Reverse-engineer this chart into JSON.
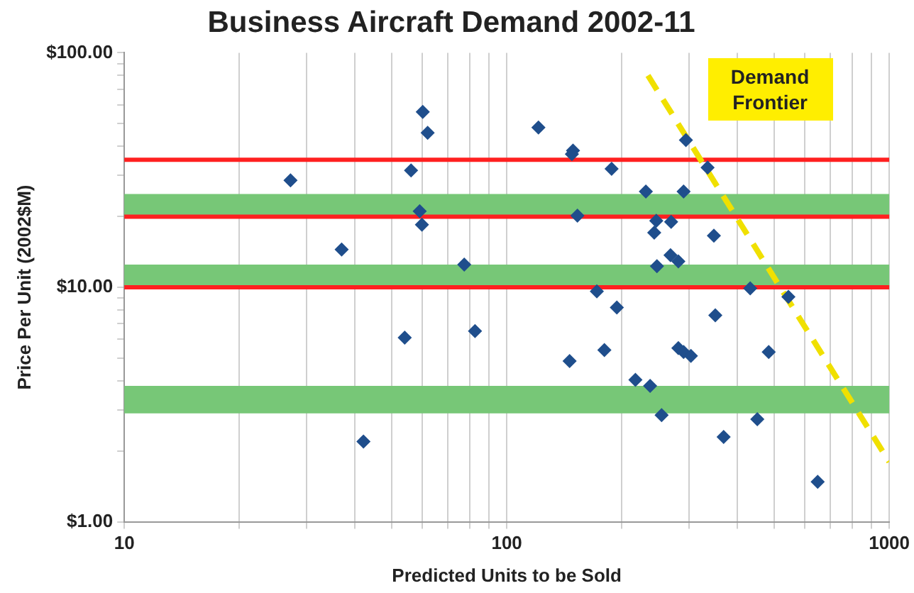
{
  "chart_data": {
    "type": "scatter",
    "title": "Business Aircraft Demand 2002-11",
    "xlabel": "Predicted Units to be Sold",
    "ylabel": "Price Per Unit (2002$M)",
    "log": "xy",
    "grid": "x",
    "legend": false,
    "xlim": [
      10,
      1000
    ],
    "xticks": [
      10,
      {
        "value": 20,
        "label": null
      },
      {
        "value": 30,
        "label": null
      },
      {
        "value": 40,
        "label": null
      },
      {
        "value": 50,
        "label": null
      },
      {
        "value": 60,
        "label": null
      },
      {
        "value": 70,
        "label": null
      },
      {
        "value": 80,
        "label": null
      },
      {
        "value": 90,
        "label": null
      },
      100,
      {
        "value": 200,
        "label": null
      },
      {
        "value": 300,
        "label": null
      },
      {
        "value": 400,
        "label": null
      },
      {
        "value": 500,
        "label": null
      },
      {
        "value": 600,
        "label": null
      },
      {
        "value": 700,
        "label": null
      },
      {
        "value": 800,
        "label": null
      },
      {
        "value": 900,
        "label": null
      },
      1000
    ],
    "ylim": [
      1,
      100
    ],
    "yticks": [
      {
        "value": 1,
        "label": "$1.00"
      },
      {
        "value": 2,
        "label": null
      },
      {
        "value": 3,
        "label": null
      },
      {
        "value": 4,
        "label": null
      },
      {
        "value": 5,
        "label": null
      },
      {
        "value": 6,
        "label": null
      },
      {
        "value": 7,
        "label": null
      },
      {
        "value": 8,
        "label": null
      },
      {
        "value": 9,
        "label": null
      },
      {
        "value": 10,
        "label": "$10.00"
      },
      {
        "value": 20,
        "label": null
      },
      {
        "value": 30,
        "label": null
      },
      {
        "value": 40,
        "label": null
      },
      {
        "value": 50,
        "label": null
      },
      {
        "value": 60,
        "label": null
      },
      {
        "value": 70,
        "label": null
      },
      {
        "value": 80,
        "label": null
      },
      {
        "value": 90,
        "label": null
      },
      {
        "value": 100,
        "label": "$100.00"
      }
    ],
    "bands": [
      {
        "axis": "y",
        "from": 20,
        "to": 25,
        "color": "#77c777"
      },
      {
        "axis": "y",
        "from": 10,
        "to": 12.5,
        "color": "#77c777"
      },
      {
        "axis": "y",
        "from": 2.9,
        "to": 3.8,
        "color": "#77c777"
      }
    ],
    "ref_lines": [
      {
        "axis": "y",
        "value": 35,
        "color": "#ff2020"
      },
      {
        "axis": "y",
        "value": 20,
        "color": "#ff2020"
      },
      {
        "axis": "y",
        "value": 10,
        "color": "#ff2020"
      }
    ],
    "annotations": [
      "Demand Frontier"
    ],
    "series": [
      {
        "marker": "diamond",
        "color": "#1f4e8c",
        "x": [
          27.2,
          60.3,
          62.1,
          56.2,
          59.2,
          60,
          37,
          77.4,
          121,
          149,
          148,
          188,
          294,
          335,
          231,
          290,
          153,
          246,
          269,
          243,
          348,
          268,
          281,
          247,
          172,
          433,
          545,
          194,
          351,
          54.1,
          82.6,
          42.2,
          146,
          180,
          281,
          290,
          303,
          484,
          217,
          237,
          254,
          369,
          452,
          650
        ],
        "values": [
          28.6,
          56,
          45.6,
          31.5,
          21.1,
          18.5,
          14.5,
          12.5,
          48,
          38.3,
          37,
          32,
          42.4,
          32.4,
          25.6,
          25.6,
          20.2,
          19.2,
          19,
          17.1,
          16.6,
          13.7,
          12.9,
          12.3,
          9.6,
          9.9,
          9.1,
          8.2,
          7.6,
          6.1,
          6.5,
          2.2,
          4.85,
          5.4,
          5.5,
          5.3,
          5.1,
          5.3,
          4.03,
          3.8,
          2.85,
          2.3,
          2.74,
          1.48
        ]
      },
      {
        "type": "line",
        "marker": "none",
        "line_style": "dashed",
        "color": "#f0e000",
        "x": [
          234,
          1000
        ],
        "values": [
          80,
          1.8
        ]
      }
    ]
  }
}
